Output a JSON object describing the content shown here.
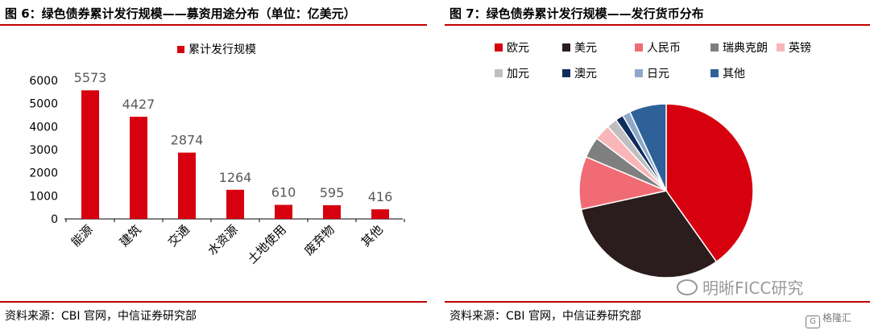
{
  "left": {
    "title": "图 6：绿色债券累计发行规模——募资用途分布（单位：亿美元）",
    "source": "资料来源：CBI 官网，中信证券研究部"
  },
  "right": {
    "title": "图 7：绿色债券累计发行规模——发行货币分布",
    "source": "资料来源：CBI 官网，中信证券研究部"
  },
  "watermark": "明晰FICC研究",
  "logo_text": "格隆汇",
  "chart_data": [
    {
      "type": "bar",
      "legend": [
        "累计发行规模"
      ],
      "legend_position": "top-center",
      "categories": [
        "能源",
        "建筑",
        "交通",
        "水资源",
        "土地使用",
        "废弃物",
        "其他"
      ],
      "series": [
        {
          "name": "累计发行规模",
          "values": [
            5573,
            4427,
            2874,
            1264,
            610,
            595,
            416
          ],
          "color": "#d7000f"
        }
      ],
      "data_labels": [
        "5573",
        "4427",
        "2874",
        "1264",
        "610",
        "595",
        "416"
      ],
      "yticks": [
        "0",
        "1000",
        "2000",
        "3000",
        "4000",
        "5000",
        "6000"
      ],
      "ylim": [
        0,
        6000
      ],
      "grid": false
    },
    {
      "type": "pie",
      "legend_position": "top",
      "slices": [
        {
          "label": "欧元",
          "value": 41,
          "color": "#d7000f"
        },
        {
          "label": "美元",
          "value": 32,
          "color": "#2b1d1d"
        },
        {
          "label": "人民币",
          "value": 10,
          "color": "#f06b74"
        },
        {
          "label": "瑞典克朗",
          "value": 4,
          "color": "#7f7f7f"
        },
        {
          "label": "英镑",
          "value": 3,
          "color": "#f9b6b8"
        },
        {
          "label": "加元",
          "value": 2,
          "color": "#bfbfbf"
        },
        {
          "label": "澳元",
          "value": 1.5,
          "color": "#0d2d5e"
        },
        {
          "label": "日元",
          "value": 1.5,
          "color": "#8ea9c8"
        },
        {
          "label": "其他",
          "value": 7,
          "color": "#2e6198"
        }
      ]
    }
  ]
}
